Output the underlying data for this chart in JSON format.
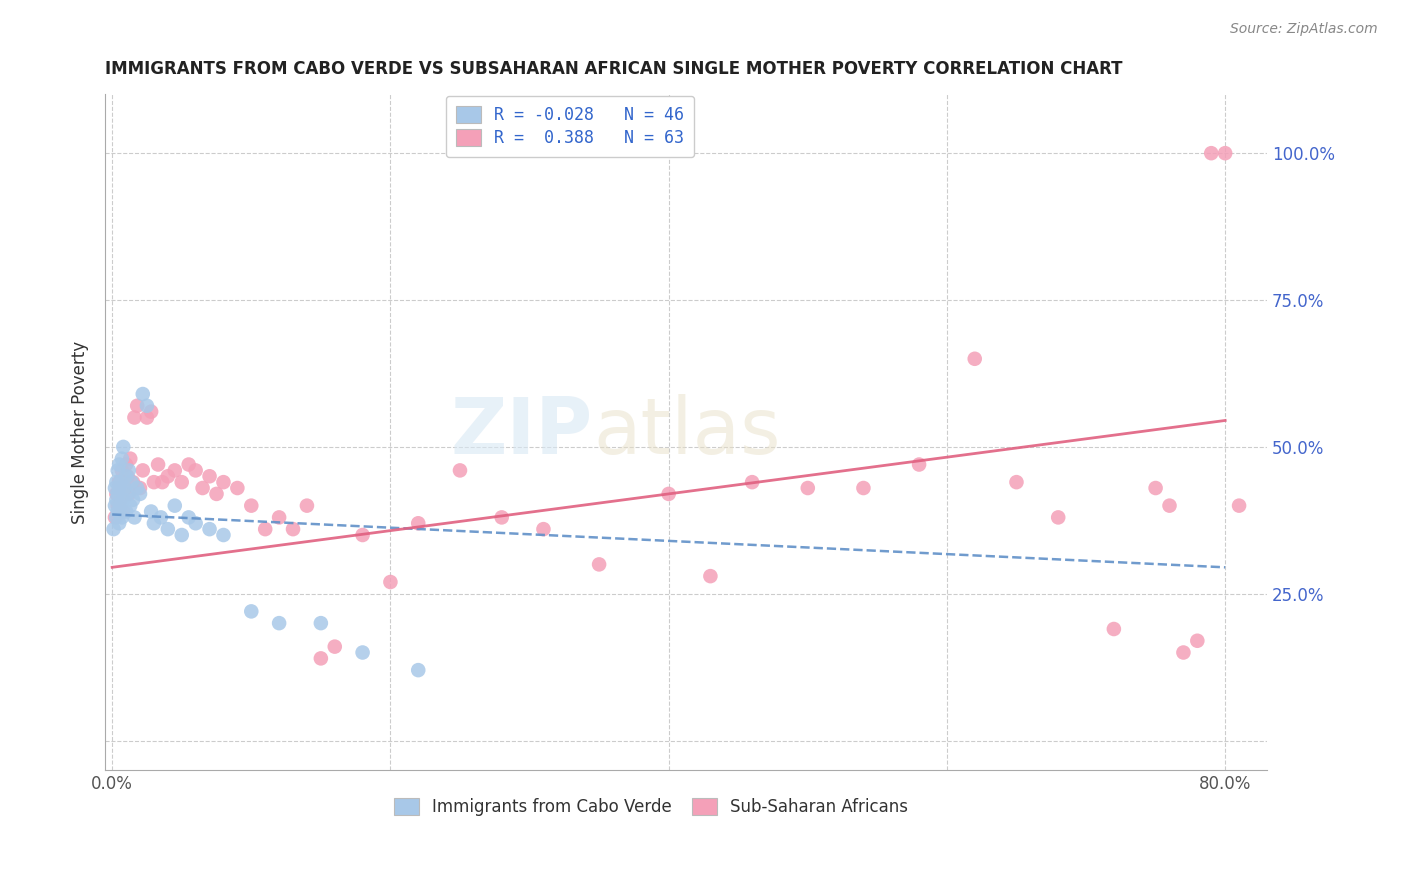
{
  "title": "IMMIGRANTS FROM CABO VERDE VS SUBSAHARAN AFRICAN SINGLE MOTHER POVERTY CORRELATION CHART",
  "source": "Source: ZipAtlas.com",
  "ylabel": "Single Mother Poverty",
  "xlim": [
    -0.005,
    0.83
  ],
  "ylim": [
    -0.05,
    1.1
  ],
  "ytick_positions": [
    0.0,
    0.25,
    0.5,
    0.75,
    1.0
  ],
  "ytick_labels_right": [
    "",
    "25.0%",
    "50.0%",
    "75.0%",
    "100.0%"
  ],
  "xtick_positions": [
    0.0,
    0.2,
    0.4,
    0.6,
    0.8
  ],
  "xtick_labels": [
    "0.0%",
    "",
    "",
    "",
    "80.0%"
  ],
  "legend_label1": "Immigrants from Cabo Verde",
  "legend_label2": "Sub-Saharan Africans",
  "R1": "-0.028",
  "N1": "46",
  "R2": "0.388",
  "N2": "63",
  "color1": "#a8c8e8",
  "color2": "#f4a0b8",
  "line1_color": "#6090c8",
  "line2_color": "#e06080",
  "line1_start_y": 0.385,
  "line1_end_y": 0.295,
  "line2_start_y": 0.295,
  "line2_end_y": 0.545,
  "cabo_verde_x": [
    0.001,
    0.002,
    0.002,
    0.003,
    0.003,
    0.003,
    0.004,
    0.004,
    0.004,
    0.005,
    0.005,
    0.005,
    0.006,
    0.006,
    0.007,
    0.007,
    0.008,
    0.008,
    0.009,
    0.01,
    0.01,
    0.011,
    0.012,
    0.013,
    0.014,
    0.015,
    0.016,
    0.018,
    0.02,
    0.022,
    0.025,
    0.028,
    0.03,
    0.035,
    0.04,
    0.045,
    0.05,
    0.055,
    0.06,
    0.07,
    0.08,
    0.1,
    0.12,
    0.15,
    0.18,
    0.22
  ],
  "cabo_verde_y": [
    0.36,
    0.4,
    0.43,
    0.38,
    0.41,
    0.44,
    0.39,
    0.42,
    0.46,
    0.37,
    0.43,
    0.47,
    0.4,
    0.44,
    0.38,
    0.48,
    0.41,
    0.5,
    0.43,
    0.39,
    0.45,
    0.42,
    0.46,
    0.4,
    0.44,
    0.41,
    0.38,
    0.43,
    0.42,
    0.59,
    0.57,
    0.39,
    0.37,
    0.38,
    0.36,
    0.4,
    0.35,
    0.38,
    0.37,
    0.36,
    0.35,
    0.22,
    0.2,
    0.2,
    0.15,
    0.12
  ],
  "subsaharan_x": [
    0.002,
    0.003,
    0.004,
    0.005,
    0.006,
    0.007,
    0.008,
    0.009,
    0.01,
    0.011,
    0.012,
    0.013,
    0.015,
    0.016,
    0.018,
    0.02,
    0.022,
    0.025,
    0.028,
    0.03,
    0.033,
    0.036,
    0.04,
    0.045,
    0.05,
    0.055,
    0.06,
    0.065,
    0.07,
    0.075,
    0.08,
    0.09,
    0.1,
    0.11,
    0.12,
    0.13,
    0.14,
    0.15,
    0.16,
    0.18,
    0.2,
    0.22,
    0.25,
    0.28,
    0.31,
    0.35,
    0.4,
    0.43,
    0.46,
    0.5,
    0.54,
    0.58,
    0.62,
    0.65,
    0.68,
    0.72,
    0.75,
    0.76,
    0.77,
    0.78,
    0.79,
    0.8,
    0.81
  ],
  "subsaharan_y": [
    0.38,
    0.42,
    0.4,
    0.44,
    0.41,
    0.46,
    0.39,
    0.43,
    0.47,
    0.45,
    0.42,
    0.48,
    0.44,
    0.55,
    0.57,
    0.43,
    0.46,
    0.55,
    0.56,
    0.44,
    0.47,
    0.44,
    0.45,
    0.46,
    0.44,
    0.47,
    0.46,
    0.43,
    0.45,
    0.42,
    0.44,
    0.43,
    0.4,
    0.36,
    0.38,
    0.36,
    0.4,
    0.14,
    0.16,
    0.35,
    0.27,
    0.37,
    0.46,
    0.38,
    0.36,
    0.3,
    0.42,
    0.28,
    0.44,
    0.43,
    0.43,
    0.47,
    0.65,
    0.44,
    0.38,
    0.19,
    0.43,
    0.4,
    0.15,
    0.17,
    1.0,
    1.0,
    0.4
  ]
}
